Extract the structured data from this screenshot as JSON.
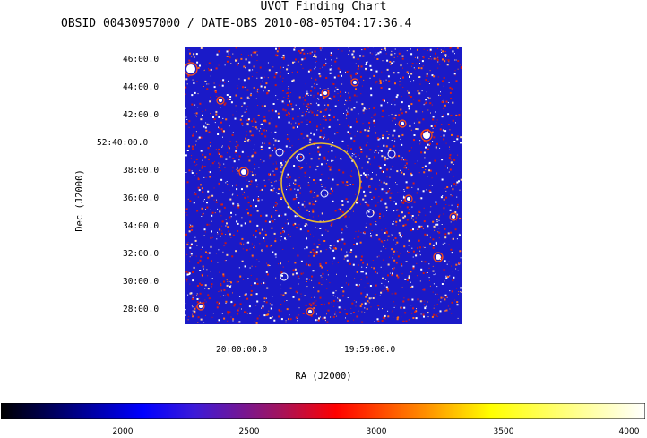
{
  "title": "UVOT Finding Chart",
  "subtitle": "OBSID 00430957000 / DATE-OBS 2010-08-05T04:17:36.4",
  "axes": {
    "ylabel": "Dec (J2000)",
    "xlabel": "RA (J2000)",
    "yticks": [
      "46:00.0",
      "44:00.0",
      "42:00.0",
      "52:40:00.0",
      "38:00.0",
      "36:00.0",
      "34:00.0",
      "32:00.0",
      "30:00.0",
      "28:00.0"
    ],
    "xticks": [
      "20:00:00.0",
      "19:59:00.0"
    ]
  },
  "colorbar": {
    "ticks": [
      "2000",
      "2500",
      "3000",
      "3500",
      "4000"
    ]
  },
  "colors": {
    "background_field": "#1a1ac8",
    "noise_red": "#c81818",
    "source_circle": "#e8b830",
    "marker": "#ffffff"
  }
}
